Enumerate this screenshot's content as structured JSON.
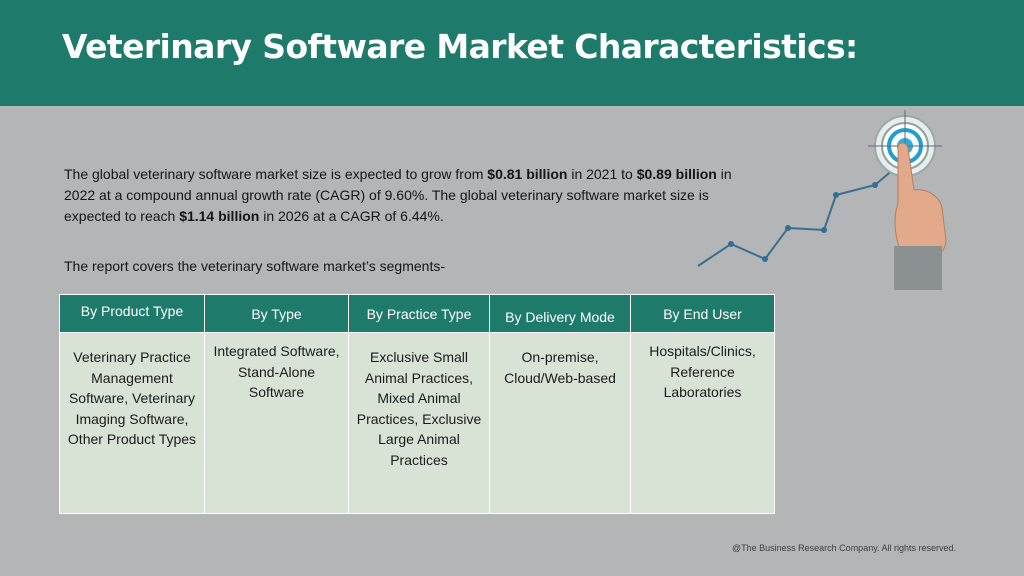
{
  "header": {
    "title": "Veterinary Software Market Characteristics:"
  },
  "intro": {
    "p1": "The global veterinary software market size is expected to grow from ",
    "b1": "$0.81 billion",
    "p2": " in 2021 to ",
    "b2": "$0.89 billion",
    "p3": " in 2022 at a compound annual growth rate (CAGR) of 9.60%. The global veterinary software market size is expected to reach ",
    "b3": "$1.14 billion",
    "p4": " in 2026 at a CAGR of 6.44%."
  },
  "segments_intro": "The report covers the veterinary software market’s segments-",
  "table": {
    "headers": [
      "By Product Type",
      "By Type",
      "By Practice Type",
      "By Delivery Mode",
      "By End User"
    ],
    "cells": [
      "Veterinary Practice Management Software, Veterinary Imaging Software, Other Product Types",
      "Integrated Software, Stand-Alone Software",
      "Exclusive Small Animal Practices, Mixed Animal Practices, Exclusive Large Animal Practices",
      "On-premise, Cloud/Web-based",
      "Hospitals/Clinics, Reference Laboratories"
    ]
  },
  "colors": {
    "header_band": "#1e7b6c",
    "table_header": "#1e7b6c",
    "table_cell": "#d9e3d5",
    "background": "#b4b5b6"
  },
  "graphic": {
    "icons": [
      "growth-line-icon",
      "target-icon",
      "pointing-hand-icon"
    ]
  },
  "footer": "@The Business Research Company. All rights reserved."
}
